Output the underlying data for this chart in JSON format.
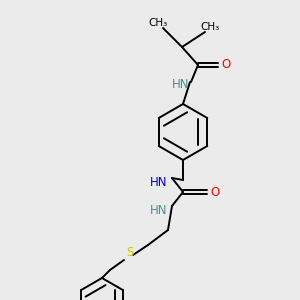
{
  "bg_color": "#ebebeb",
  "atom_colors": {
    "N": "#0000cc",
    "O": "#ff0000",
    "S": "#cccc00",
    "HN_teal": "#4a9090"
  },
  "figsize": [
    3.0,
    3.0
  ],
  "dpi": 100
}
